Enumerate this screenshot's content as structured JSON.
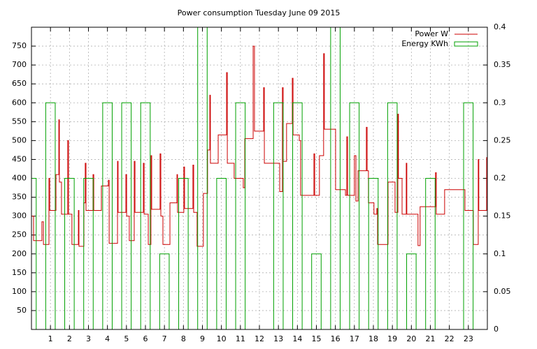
{
  "chart_data": {
    "type": "line",
    "title": "Power consumption Tuesday June 09 2015",
    "xlim": [
      0,
      24
    ],
    "xticks": [
      1,
      2,
      3,
      4,
      5,
      6,
      7,
      8,
      9,
      10,
      11,
      12,
      13,
      14,
      15,
      16,
      17,
      18,
      19,
      20,
      21,
      22,
      23
    ],
    "ylim": [
      0,
      800
    ],
    "yticks": [
      50,
      100,
      150,
      200,
      250,
      300,
      350,
      400,
      450,
      500,
      550,
      600,
      650,
      700,
      750
    ],
    "y2lim": [
      0,
      0.4
    ],
    "y2ticks": [
      0,
      0.05,
      0.1,
      0.15,
      0.2,
      0.25,
      0.3,
      0.35,
      0.4
    ],
    "grid": true,
    "legend": "top-right",
    "series": [
      {
        "name": "Power W",
        "type": "step",
        "color": "#cc0000",
        "x": [
          0,
          0.11,
          0.55,
          0.63,
          0.92,
          0.96,
          1.29,
          1.44,
          1.47,
          1.58,
          1.91,
          1.95,
          2.13,
          2.47,
          2.5,
          2.76,
          2.83,
          2.87,
          3.24,
          3.28,
          3.68,
          4.05,
          4.09,
          4.53,
          4.56,
          4.97,
          5.01,
          5.15,
          5.41,
          5.45,
          5.89,
          5.93,
          6.15,
          6.29,
          6.33,
          6.77,
          6.81,
          6.92,
          7.29,
          7.66,
          7.69,
          8.02,
          8.06,
          8.5,
          8.54,
          8.72,
          9.05,
          9.27,
          9.39,
          9.42,
          9.83,
          10.27,
          10.31,
          10.67,
          11.15,
          11.23,
          11.67,
          11.74,
          12.22,
          12.26,
          13.07,
          13.21,
          13.25,
          13.43,
          13.73,
          13.77,
          14.1,
          14.17,
          14.87,
          14.91,
          15.16,
          15.38,
          15.42,
          16.01,
          16.53,
          16.6,
          16.64,
          17,
          17.08,
          17.19,
          17.63,
          17.67,
          17.74,
          18.03,
          18.18,
          18.22,
          18.77,
          19.14,
          19.29,
          19.32,
          19.51,
          19.73,
          19.76,
          20.35,
          20.46,
          21.27,
          21.31,
          21.75,
          22.82,
          23.26,
          23.52,
          23.55,
          23.96
        ],
        "values": [
          300,
          235,
          285,
          225,
          400,
          315,
          410,
          555,
          390,
          305,
          500,
          305,
          225,
          315,
          220,
          335,
          440,
          315,
          410,
          315,
          380,
          395,
          228,
          445,
          310,
          410,
          300,
          235,
          445,
          310,
          440,
          305,
          225,
          460,
          318,
          465,
          300,
          225,
          335,
          410,
          310,
          430,
          320,
          435,
          310,
          220,
          360,
          475,
          620,
          440,
          515,
          680,
          440,
          400,
          375,
          505,
          750,
          525,
          640,
          440,
          365,
          640,
          445,
          545,
          665,
          515,
          500,
          355,
          465,
          355,
          460,
          730,
          530,
          370,
          355,
          510,
          355,
          460,
          340,
          420,
          535,
          420,
          335,
          305,
          320,
          225,
          390,
          310,
          570,
          400,
          305,
          440,
          305,
          222,
          325,
          415,
          305,
          370,
          315,
          225,
          450,
          315,
          455
        ]
      },
      {
        "name": "Energy KWh",
        "type": "boxes",
        "color": "#00a000",
        "axis": "y2",
        "x": [
          0,
          1,
          2,
          3,
          4,
          5,
          6,
          7,
          8,
          9,
          10,
          11,
          12,
          13,
          14,
          15,
          16,
          17,
          18,
          19,
          20,
          21,
          22,
          23
        ],
        "values": [
          0.2,
          0.3,
          0.2,
          0.2,
          0.3,
          0.3,
          0.3,
          0.1,
          0.2,
          0.4,
          0.2,
          0.3,
          0,
          0.3,
          0.3,
          0.1,
          0.4,
          0.3,
          0.2,
          0.3,
          0.1,
          0.2,
          0,
          0.3
        ]
      }
    ]
  }
}
